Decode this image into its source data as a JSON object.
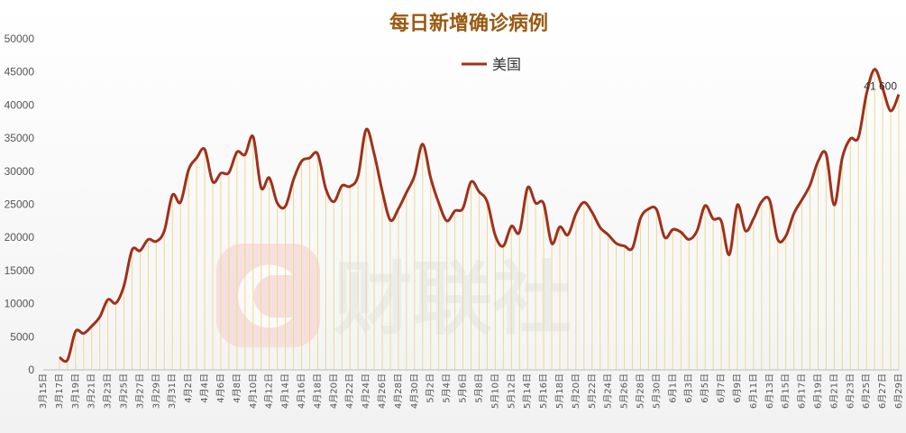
{
  "chart_data": {
    "type": "line",
    "title": "每日新增确诊病例",
    "xlabel": "",
    "ylabel": "",
    "ylim": [
      0,
      50000
    ],
    "yticks": [
      0,
      5000,
      10000,
      15000,
      20000,
      25000,
      30000,
      35000,
      40000,
      45000,
      50000
    ],
    "x_tick_labels": [
      "3月15日",
      "3月17日",
      "3月19日",
      "3月21日",
      "3月23日",
      "3月25日",
      "3月27日",
      "3月29日",
      "3月31日",
      "4月2日",
      "4月4日",
      "4月6日",
      "4月8日",
      "4月10日",
      "4月12日",
      "4月14日",
      "4月16日",
      "4月18日",
      "4月20日",
      "4月22日",
      "4月24日",
      "4月26日",
      "4月28日",
      "4月30日",
      "5月2日",
      "5月4日",
      "5月6日",
      "5月8日",
      "5月10日",
      "5月12日",
      "5月14日",
      "5月16日",
      "5月18日",
      "5月20日",
      "5月22日",
      "5月24日",
      "5月26日",
      "5月28日",
      "5月30日",
      "6月1日",
      "6月3日",
      "6月5日",
      "6月7日",
      "6月9日",
      "6月11日",
      "6月13日",
      "6月15日",
      "6月17日",
      "6月19日",
      "6月21日",
      "6月23日",
      "6月25日",
      "6月27日",
      "6月29日"
    ],
    "legend_position": "top-center",
    "grid": false,
    "series": [
      {
        "name": "美国",
        "color": "#a0301a",
        "values": [
          null,
          null,
          1900,
          1500,
          5800,
          5500,
          6600,
          8000,
          10600,
          10100,
          12700,
          18100,
          18000,
          19700,
          19400,
          21000,
          26400,
          25300,
          30200,
          32000,
          33300,
          28400,
          29700,
          29800,
          32900,
          32500,
          35200,
          27500,
          29000,
          25200,
          24700,
          28700,
          31500,
          32000,
          32600,
          27400,
          25400,
          27800,
          27700,
          29300,
          36300,
          32600,
          27000,
          22600,
          24300,
          26800,
          29300,
          34100,
          29000,
          25200,
          22500,
          24000,
          24400,
          28400,
          26900,
          25400,
          20300,
          18700,
          21700,
          20800,
          27500,
          25200,
          25100,
          19100,
          21600,
          20400,
          23600,
          25300,
          23800,
          21500,
          20400,
          19100,
          18700,
          18400,
          22900,
          24300,
          24200,
          20000,
          21200,
          20800,
          19700,
          21000,
          24800,
          22800,
          22500,
          17400,
          24900,
          21000,
          22800,
          25400,
          25600,
          19700,
          20200,
          23600,
          25700,
          27900,
          31500,
          32600,
          24900,
          32000,
          34900,
          35100,
          41700,
          45400,
          42500,
          39100,
          41600
        ]
      }
    ],
    "annotations": [
      {
        "label": "41 600",
        "x": "6月29日",
        "value": 41600
      }
    ],
    "colors": {
      "title": "#9a5a12",
      "line": "#a0301a",
      "dropline": "#f0d890",
      "axis": "#bbbbbb",
      "watermark": "#f2c8c8"
    },
    "watermark_text": "财联社"
  }
}
